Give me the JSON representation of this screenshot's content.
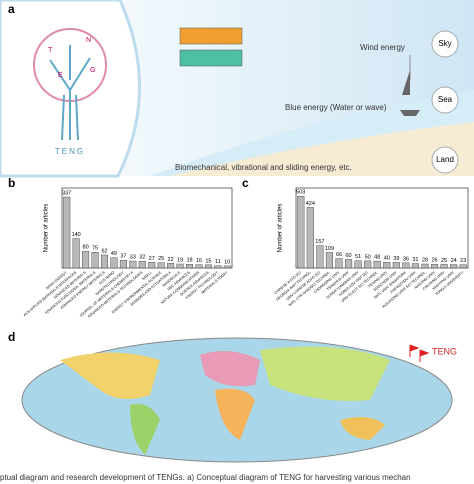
{
  "panel_a": {
    "label": "a",
    "tree_label": "TENG",
    "tree_letters": [
      "T",
      "E",
      "N",
      "G"
    ],
    "wind": "Wind energy",
    "sky": "Sky",
    "blue": "Blue energy (Water or wave)",
    "sea": "Sea",
    "bio": "Biomechanical, vibrational and sliding energy, etc.",
    "land": "Land"
  },
  "chart_data": [
    {
      "type": "bar",
      "panel": "b",
      "y_label": "Number of articles",
      "color": "#b8b8b8",
      "ylim": [
        0,
        380
      ],
      "categories": [
        "NANO ENERGY",
        "ACS APPLIED MATERIALS INTERFACES",
        "ADVANCED MATERIALS",
        "ADVANCED FUNCTIONAL MATERIALS",
        "ADVANCED ENERGY MATERIALS",
        "ACS NANO",
        "NANOTECHNOLOGY",
        "JOURNAL OF MATERIALS CHEMISTRY A",
        "ADVANCED MATERIALS TECHNOLOGIES",
        "SMALL",
        "ENERGY ENVIRONMENTAL SCIENCE",
        "SENSORS AND ACTUATORS A",
        "NANOSCALE",
        "RSC ADVANCES",
        "NATURE COMMUNICATIONS",
        "SCIENCE ADVANCES",
        "ENERGY TECHNOLOGY",
        "MATERIALS TODAY"
      ],
      "values": [
        337,
        140,
        80,
        75,
        62,
        49,
        37,
        33,
        32,
        27,
        25,
        22,
        19,
        18,
        16,
        15,
        11,
        10
      ]
    },
    {
      "type": "bar",
      "panel": "c",
      "y_label": "Number of articles",
      "color": "#b8b8b8",
      "ylim": [
        0,
        560
      ],
      "categories": [
        "CHINESE ACAD SCI",
        "GEORGIA INST TECHNOL",
        "UNIV CHINESE ACAD SCI",
        "NATL CTR NANOSCI TECHNOL",
        "CHONGQING UNIV",
        "TSINGHUA UNIV",
        "SUNGKYUNKWAN UNIV",
        "KOREA ADV INST SCI",
        "UNIV ELECT SCI TECHNOL",
        "PEKING UNIV",
        "SOOCHOW UNIV",
        "NATL UNIV SINGAPORE",
        "ZHENGZHOU UNIV",
        "HUAZHONG UNIV SCI TECHNOL",
        "NANJING UNIV",
        "ZHEJIANG UNIV",
        "HANYANG UNIV",
        "TONGJI UNIVERSITY"
      ],
      "values": [
        503,
        424,
        157,
        109,
        66,
        60,
        51,
        50,
        48,
        40,
        39,
        36,
        31,
        28,
        26,
        25,
        24,
        23
      ]
    }
  ],
  "panel_d": {
    "label": "d",
    "legend": "TENG"
  },
  "caption": "ptual diagram and research development of TENGs. a) Conceptual diagram of TENG for harvesting various mechan"
}
